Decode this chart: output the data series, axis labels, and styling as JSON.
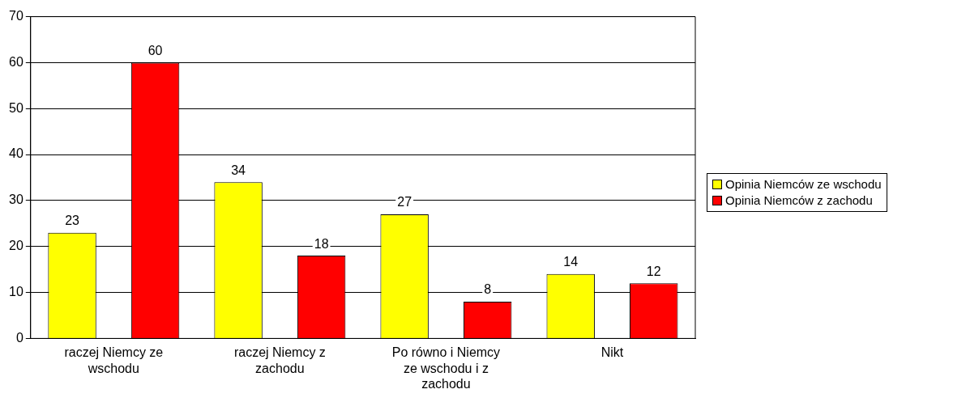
{
  "chart_data": {
    "type": "bar",
    "categories": [
      "raczej Niemcy ze wschodu",
      "raczej Niemcy z zachodu",
      "Po równo i Niemcy ze wschodu i z zachodu",
      "Nikt"
    ],
    "series": [
      {
        "name": "Opinia Niemców ze wschodu",
        "color": "#ffff00",
        "values": [
          23,
          34,
          27,
          14
        ]
      },
      {
        "name": "Opinia Niemców z zachodu",
        "color": "#ff0000",
        "values": [
          60,
          18,
          8,
          12
        ]
      }
    ],
    "ylim": [
      0,
      70
    ],
    "yticks": [
      0,
      10,
      20,
      30,
      40,
      50,
      60,
      70
    ],
    "grid": "y",
    "legend": "right",
    "data_labels": true
  }
}
